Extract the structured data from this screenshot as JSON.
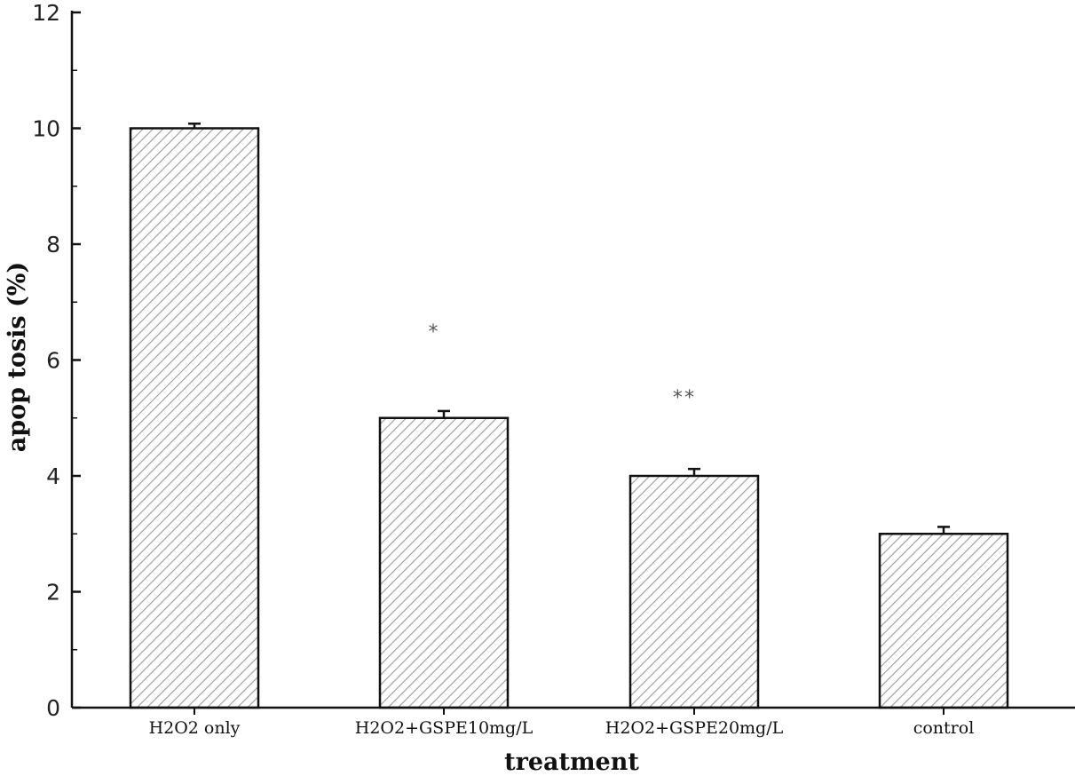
{
  "chart_data": {
    "type": "bar",
    "title": "",
    "xlabel": "treatment",
    "ylabel": "apop tosis (%)",
    "categories": [
      "H2O2 only",
      "H2O2+GSPE10mg/L",
      "H2O2+GSPE20mg/L",
      "control"
    ],
    "values": [
      10.0,
      5.0,
      4.0,
      3.0
    ],
    "errors": [
      0.08,
      0.12,
      0.12,
      0.12
    ],
    "annotations": [
      "",
      "*",
      "**",
      ""
    ],
    "ylim": [
      0,
      12
    ],
    "yticks": [
      "0",
      "2",
      "4",
      "6",
      "8",
      "10",
      "12"
    ],
    "grid": false,
    "bar_fill": "hatched",
    "colors": {
      "bar_stroke": "#111111",
      "hatch_line": "#9a9a9a",
      "axis": "#111111"
    }
  }
}
